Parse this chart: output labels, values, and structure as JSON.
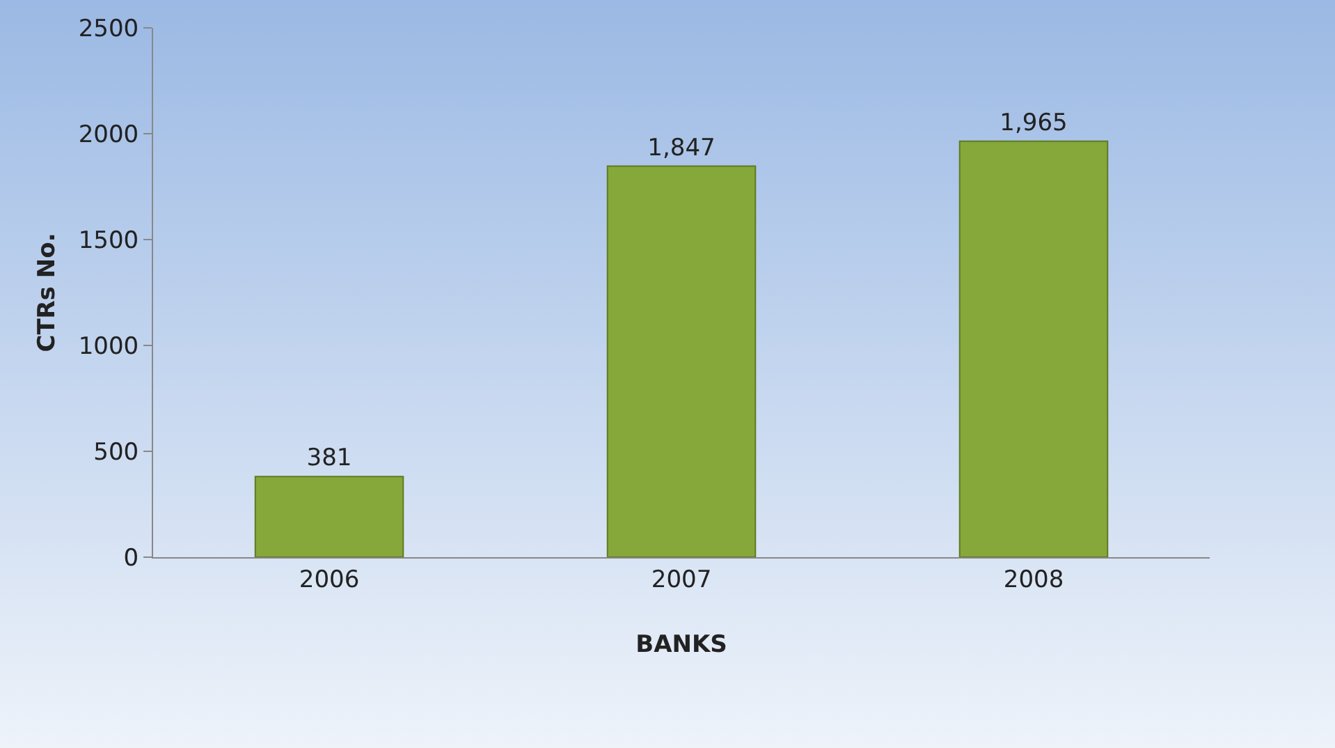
{
  "chart_data": {
    "type": "bar",
    "xlabel": "BANKS",
    "ylabel": "CTRs No.",
    "categories": [
      "2006",
      "2007",
      "2008"
    ],
    "values": [
      381,
      1847,
      1965
    ],
    "color": "#86a83a",
    "value_labels": [
      "381",
      "1,847",
      "1,965"
    ],
    "ylim": [
      0,
      2500
    ],
    "yticks": [
      0,
      500,
      1000,
      1500,
      2000,
      2500
    ],
    "grid": false,
    "legend": false
  }
}
